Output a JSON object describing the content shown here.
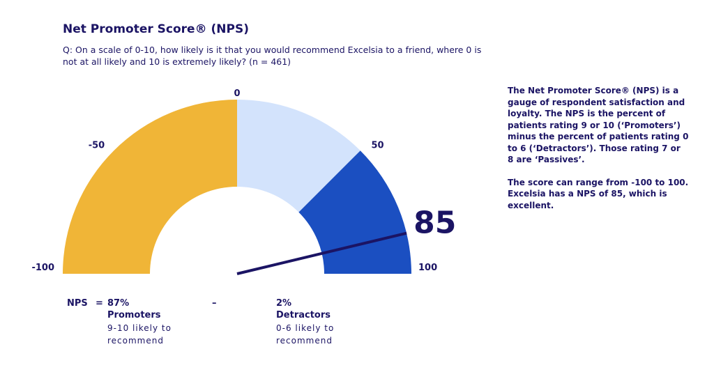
{
  "title": "Net Promoter Score® (NPS)",
  "question": "Q: On a scale of 0-10, how likely is it that you would recommend Excelsia to a friend, where 0 is not at all likely and 10 is extremely likely? (n = 461)",
  "description": [
    "The Net Promoter Score® (NPS) is a gauge of respondent satisfaction and loyalty. The NPS is the percent of patients rating 9 or 10 (‘Promoters’) minus the percent of patients rating 0 to 6 (‘Detractors’). Those rating 7 or 8 are ‘Passives’.",
    "The score can range from -100 to 100. Excelsia has a NPS of 85, which is excellent."
  ],
  "formula": {
    "label": "NPS",
    "equals": "=",
    "minus": "–",
    "promoters": {
      "value": "87%",
      "label": "Promoters",
      "sub": "9-10 likely to recommend"
    },
    "detractors": {
      "value": "2%",
      "label": "Detractors",
      "sub": "0-6 likely to recommend"
    }
  },
  "chart_data": {
    "type": "gauge",
    "range": [
      -100,
      100
    ],
    "value": 85,
    "value_label": "85",
    "ticks": [
      {
        "value": -100,
        "label": "-100"
      },
      {
        "value": -50,
        "label": "-50"
      },
      {
        "value": 0,
        "label": "0"
      },
      {
        "value": 50,
        "label": "50"
      },
      {
        "value": 100,
        "label": "100"
      }
    ],
    "bands": [
      {
        "from": -100,
        "to": 0,
        "color": "#f0b537"
      },
      {
        "from": 0,
        "to": 50,
        "color": "#d3e3fc"
      },
      {
        "from": 50,
        "to": 100,
        "color": "#1b4fc1"
      }
    ],
    "needle_color": "#1b1464"
  }
}
